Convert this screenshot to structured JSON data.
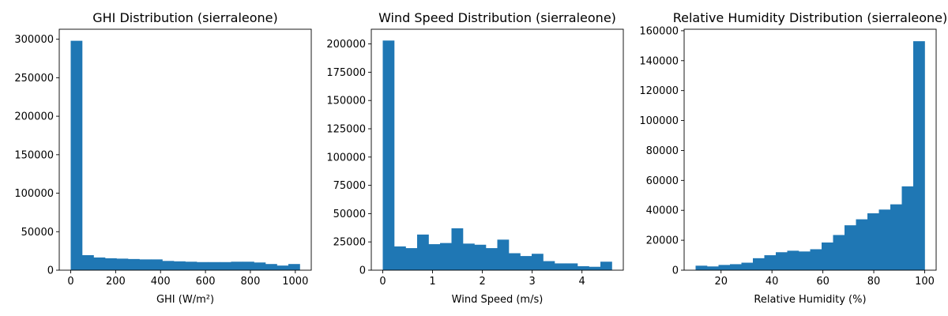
{
  "chart_data": [
    {
      "type": "histogram",
      "title": "GHI Distribution (sierraleone)",
      "xlabel": "GHI (W/m²)",
      "ylabel": "",
      "bar_color": "#1f77b4",
      "xlim": [
        -51,
        1071
      ],
      "ylim": [
        0,
        313000
      ],
      "xticks": [
        0,
        200,
        400,
        600,
        800,
        1000
      ],
      "yticks": [
        0,
        50000,
        100000,
        150000,
        200000,
        250000,
        300000
      ],
      "bins": [
        0,
        51,
        102,
        153,
        204,
        255,
        306,
        357,
        408,
        459,
        510,
        561,
        612,
        663,
        714,
        765,
        816,
        867,
        918,
        969,
        1020
      ],
      "counts": [
        298000,
        19500,
        16500,
        15500,
        15000,
        14500,
        14000,
        14000,
        12000,
        11500,
        11000,
        10500,
        10500,
        10500,
        11000,
        11000,
        10000,
        8000,
        6000,
        8000
      ]
    },
    {
      "type": "histogram",
      "title": "Wind Speed Distribution (sierraleone)",
      "xlabel": "Wind Speed (m/s)",
      "ylabel": "",
      "bar_color": "#1f77b4",
      "xlim": [
        -0.23,
        4.83
      ],
      "ylim": [
        0,
        213000
      ],
      "xticks": [
        0,
        1,
        2,
        3,
        4
      ],
      "yticks": [
        0,
        25000,
        50000,
        75000,
        100000,
        125000,
        150000,
        175000,
        200000
      ],
      "bins": [
        0,
        0.23,
        0.46,
        0.69,
        0.92,
        1.15,
        1.38,
        1.61,
        1.84,
        2.07,
        2.3,
        2.53,
        2.76,
        2.99,
        3.22,
        3.45,
        3.68,
        3.91,
        4.14,
        4.37,
        4.6
      ],
      "counts": [
        203000,
        21000,
        19500,
        31500,
        23000,
        24000,
        37000,
        23500,
        22500,
        19500,
        27000,
        15000,
        12500,
        14500,
        8000,
        6000,
        6000,
        3500,
        3000,
        7500
      ]
    },
    {
      "type": "histogram",
      "title": "Relative Humidity Distribution (sierraleone)",
      "xlabel": "Relative Humidity (%)",
      "ylabel": "",
      "bar_color": "#1f77b4",
      "xlim": [
        5.5,
        104.5
      ],
      "ylim": [
        0,
        161000
      ],
      "xticks": [
        20,
        40,
        60,
        80,
        100
      ],
      "yticks": [
        0,
        20000,
        40000,
        60000,
        80000,
        100000,
        120000,
        140000,
        160000
      ],
      "bins": [
        10,
        14.5,
        19,
        23.5,
        28,
        32.5,
        37,
        41.5,
        46,
        50.5,
        55,
        59.5,
        64,
        68.5,
        73,
        77.5,
        82,
        86.5,
        91,
        95.5,
        100
      ],
      "counts": [
        3000,
        2500,
        3500,
        4000,
        5000,
        8000,
        10000,
        12000,
        13000,
        12500,
        14000,
        18500,
        23500,
        30000,
        34000,
        38000,
        40500,
        44000,
        56000,
        153000
      ]
    }
  ]
}
